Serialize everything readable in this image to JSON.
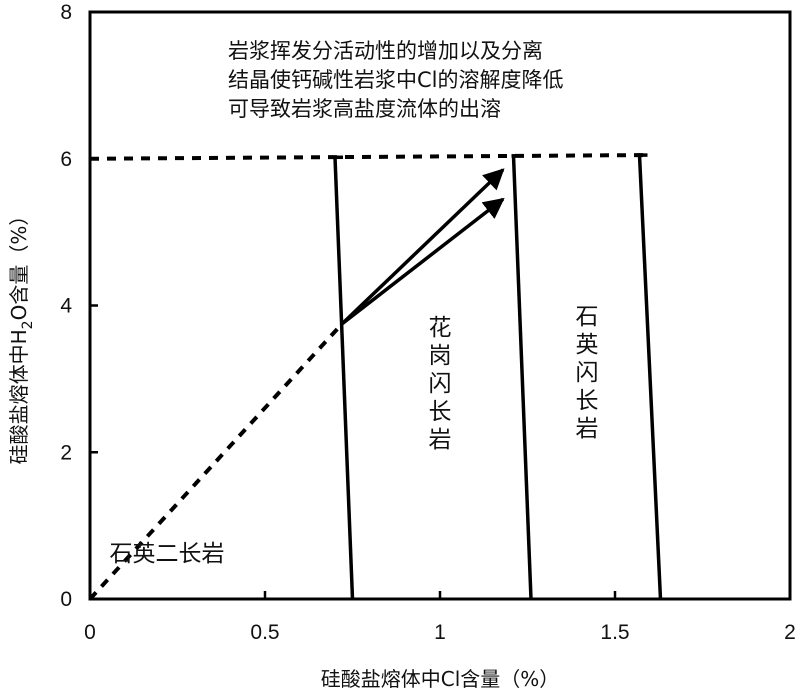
{
  "chart_data": {
    "type": "line",
    "xlabel": "硅酸盐熔体中Cl含量（%）",
    "ylabel_parts": [
      "硅酸盐熔体中H",
      "2",
      "O含量（%）"
    ],
    "xlim": [
      0,
      2
    ],
    "ylim": [
      0,
      8
    ],
    "x_ticks": [
      0,
      0.5,
      1,
      1.5,
      2
    ],
    "x_tick_labels": [
      "0",
      "0.5",
      "1",
      "1.5",
      "2"
    ],
    "y_ticks": [
      0,
      2,
      4,
      6,
      8
    ],
    "y_tick_labels": [
      "0",
      "2",
      "4",
      "6",
      "8"
    ],
    "grid": false,
    "annotation_lines": [
      "岩浆挥发分活动性的增加以及分离",
      "结晶使钙碱性岩浆中Cl的溶解度降低",
      "可导致岩浆高盐度流体的出溶"
    ],
    "regions": [
      {
        "label": "石英二长岩",
        "orientation": "horizontal",
        "x": 0.22,
        "y": 0.52
      },
      {
        "label": "花岗闪长岩",
        "orientation": "vertical",
        "x": 1.0,
        "y": 3.6
      },
      {
        "label": "石英闪长岩",
        "orientation": "vertical",
        "x": 1.42,
        "y": 3.75
      }
    ],
    "dashed_curves": [
      {
        "points": [
          [
            0,
            0
          ],
          [
            0.72,
            3.75
          ]
        ]
      },
      {
        "points": [
          [
            0,
            6.0
          ],
          [
            1.58,
            6.05
          ]
        ]
      }
    ],
    "solid_boundaries": [
      {
        "points": [
          [
            0.7,
            6.02
          ],
          [
            0.75,
            0
          ]
        ]
      },
      {
        "points": [
          [
            1.21,
            6.04
          ],
          [
            1.26,
            0
          ]
        ]
      },
      {
        "points": [
          [
            1.57,
            6.05
          ],
          [
            1.63,
            0
          ]
        ]
      }
    ],
    "arrows": [
      {
        "from": [
          0.72,
          3.75
        ],
        "to": [
          1.18,
          5.85
        ]
      },
      {
        "from": [
          0.72,
          3.75
        ],
        "to": [
          1.18,
          5.45
        ]
      }
    ]
  }
}
